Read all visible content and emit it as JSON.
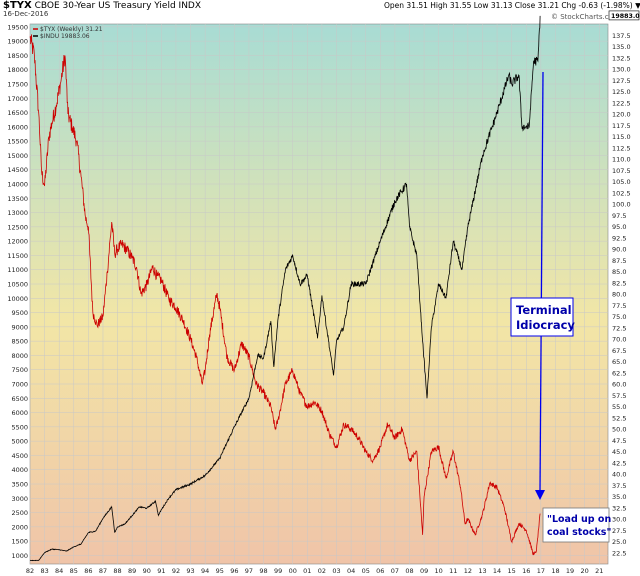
{
  "header": {
    "symbol": "$TYX",
    "description": "CBOE 30-Year US Treasury Yield INDX",
    "date": "16-Dec-2016",
    "ohlc": "Open 31.51  High 31.55  Low 31.13  Close 31.21  Chg -0.63 (-1.98%) ▼",
    "source": "© StockCharts.com"
  },
  "colors": {
    "tyx_series": "#cc0000",
    "indu_series": "#000000",
    "arrow": "#0000ee",
    "annotation_text": "#0000aa",
    "bg_top": "#a8dcd4",
    "bg_mid": "#f2e6a6",
    "bg_bottom": "#f0c4a8"
  },
  "chart_data": {
    "type": "line",
    "title": "$TYX CBOE 30-Year US Treasury Yield INDX",
    "legend": [
      "$TYX (Weekly) 31.21",
      "$INDU 19883.06"
    ],
    "legend_position": "top-left",
    "grid": true,
    "x_tick_labels": [
      "82",
      "83",
      "84",
      "85",
      "86",
      "87",
      "88",
      "89",
      "90",
      "91",
      "92",
      "93",
      "94",
      "95",
      "96",
      "97",
      "98",
      "99",
      "00",
      "01",
      "02",
      "03",
      "04",
      "05",
      "06",
      "07",
      "08",
      "09",
      "10",
      "11",
      "12",
      "13",
      "14",
      "15",
      "16",
      "17",
      "18",
      "19",
      "20",
      "21"
    ],
    "xlim": [
      1982,
      2021.6
    ],
    "left_axis": {
      "series": "$INDU",
      "ylim": [
        700,
        19600
      ],
      "ticks": [
        1000,
        1500,
        2000,
        2500,
        3000,
        3500,
        4000,
        4500,
        5000,
        5500,
        6000,
        6500,
        7000,
        7500,
        8000,
        8500,
        9000,
        9500,
        10000,
        10500,
        11000,
        11500,
        12000,
        12500,
        13000,
        13500,
        14000,
        14500,
        15000,
        15500,
        16000,
        16500,
        17000,
        17500,
        18000,
        18500,
        19000,
        19500
      ]
    },
    "right_axis": {
      "series": "$TYX",
      "ylim": [
        20.0,
        140.0
      ],
      "ticks": [
        "22.5",
        "25.0",
        "27.5",
        "30.0",
        "32.5",
        "35.0",
        "37.5",
        "40.0",
        "42.5",
        "45.0",
        "47.5",
        "50.0",
        "52.5",
        "55.0",
        "57.5",
        "60.0",
        "62.5",
        "65.0",
        "67.5",
        "70.0",
        "72.5",
        "75.0",
        "77.5",
        "80.0",
        "82.5",
        "85.0",
        "87.5",
        "90.0",
        "92.5",
        "95.0",
        "97.5",
        "100.0",
        "102.5",
        "105.0",
        "107.5",
        "110.0",
        "112.5",
        "115.0",
        "117.5",
        "120.0",
        "122.5",
        "125.0",
        "127.5",
        "130.0",
        "132.5",
        "135.0",
        "137.5"
      ],
      "last_value_label": "19883.06"
    },
    "series": [
      {
        "name": "$TYX (Weekly) 31.21",
        "axis": "right",
        "x": [
          1982.0,
          1982.3,
          1982.6,
          1982.8,
          1983.0,
          1983.3,
          1983.5,
          1983.8,
          1984.1,
          1984.4,
          1984.6,
          1984.9,
          1985.2,
          1985.5,
          1985.8,
          1986.0,
          1986.3,
          1986.6,
          1987.0,
          1987.3,
          1987.6,
          1987.8,
          1988.0,
          1988.3,
          1988.6,
          1989.0,
          1989.3,
          1989.6,
          1990.0,
          1990.4,
          1990.7,
          1991.0,
          1991.5,
          1992.0,
          1992.5,
          1993.0,
          1993.4,
          1993.8,
          1994.0,
          1994.3,
          1994.8,
          1995.0,
          1995.5,
          1996.0,
          1996.5,
          1997.0,
          1997.5,
          1998.0,
          1998.5,
          1998.8,
          1999.0,
          1999.5,
          2000.0,
          2000.5,
          2001.0,
          2001.5,
          2002.0,
          2002.5,
          2003.0,
          2003.5,
          2004.0,
          2004.5,
          2005.0,
          2005.5,
          2006.0,
          2006.5,
          2007.0,
          2007.5,
          2008.0,
          2008.5,
          2008.9,
          2009.0,
          2009.5,
          2010.0,
          2010.5,
          2011.0,
          2011.5,
          2011.8,
          2012.0,
          2012.5,
          2013.0,
          2013.5,
          2014.0,
          2014.5,
          2015.0,
          2015.5,
          2016.0,
          2016.5,
          2016.7,
          2016.95
        ],
        "values": [
          137.0,
          133.0,
          120.0,
          107.0,
          104.0,
          115.0,
          118.0,
          122.0,
          127.0,
          133.0,
          120.0,
          117.0,
          114.0,
          106.0,
          97.0,
          95.0,
          76.0,
          73.0,
          75.0,
          85.0,
          96.0,
          89.0,
          90.0,
          91.0,
          90.0,
          88.0,
          86.0,
          80.0,
          82.0,
          86.0,
          84.0,
          83.0,
          79.0,
          77.0,
          74.0,
          70.0,
          66.0,
          60.0,
          63.0,
          71.0,
          80.0,
          77.0,
          66.0,
          63.0,
          69.0,
          66.0,
          60.0,
          58.0,
          55.0,
          50.0,
          52.0,
          60.0,
          63.0,
          58.0,
          55.0,
          56.0,
          54.0,
          49.0,
          46.0,
          51.0,
          50.0,
          48.0,
          45.0,
          43.0,
          46.0,
          51.0,
          48.0,
          50.0,
          43.0,
          45.0,
          26.5,
          35.0,
          45.0,
          46.0,
          39.0,
          45.0,
          37.0,
          29.0,
          30.0,
          26.5,
          31.0,
          38.0,
          37.0,
          32.5,
          25.0,
          29.0,
          27.5,
          22.0,
          23.0,
          31.2
        ]
      },
      {
        "name": "$INDU 19883.06",
        "axis": "left",
        "x": [
          1982.0,
          1982.6,
          1983.0,
          1983.5,
          1984.0,
          1984.5,
          1985.0,
          1985.5,
          1986.0,
          1986.5,
          1987.0,
          1987.6,
          1987.8,
          1988.0,
          1988.5,
          1989.0,
          1989.5,
          1990.0,
          1990.6,
          1990.8,
          1991.0,
          1991.5,
          1992.0,
          1993.0,
          1994.0,
          1995.0,
          1996.0,
          1997.0,
          1997.6,
          1998.0,
          1998.5,
          1998.7,
          1999.0,
          1999.5,
          2000.0,
          2000.5,
          2001.0,
          2001.7,
          2002.0,
          2002.6,
          2002.8,
          2003.0,
          2003.5,
          2004.0,
          2005.0,
          2006.0,
          2007.0,
          2007.8,
          2008.0,
          2008.5,
          2008.9,
          2009.2,
          2009.5,
          2010.0,
          2010.5,
          2011.0,
          2011.6,
          2012.0,
          2013.0,
          2014.0,
          2014.8,
          2015.0,
          2015.5,
          2015.7,
          2016.0,
          2016.2,
          2016.5,
          2016.8,
          2016.95
        ],
        "values": [
          820,
          830,
          1100,
          1220,
          1200,
          1150,
          1300,
          1400,
          1800,
          1850,
          2300,
          2700,
          1800,
          2000,
          2100,
          2400,
          2700,
          2650,
          2900,
          2400,
          2600,
          3000,
          3300,
          3500,
          3800,
          4400,
          5500,
          6500,
          8000,
          7900,
          9200,
          7600,
          9300,
          11000,
          11500,
          10500,
          10800,
          8600,
          10100,
          8000,
          7300,
          8500,
          9000,
          10500,
          10500,
          12000,
          13400,
          14000,
          12500,
          11500,
          8500,
          6500,
          9000,
          10500,
          10000,
          12000,
          11000,
          12500,
          15000,
          16500,
          17800,
          17500,
          17800,
          16000,
          16000,
          16000,
          18300,
          18300,
          19883
        ]
      }
    ]
  },
  "annotations": {
    "terminal": "Terminal\nIdiocracy",
    "coal": "\"Load up on\ncoal stocks\""
  }
}
